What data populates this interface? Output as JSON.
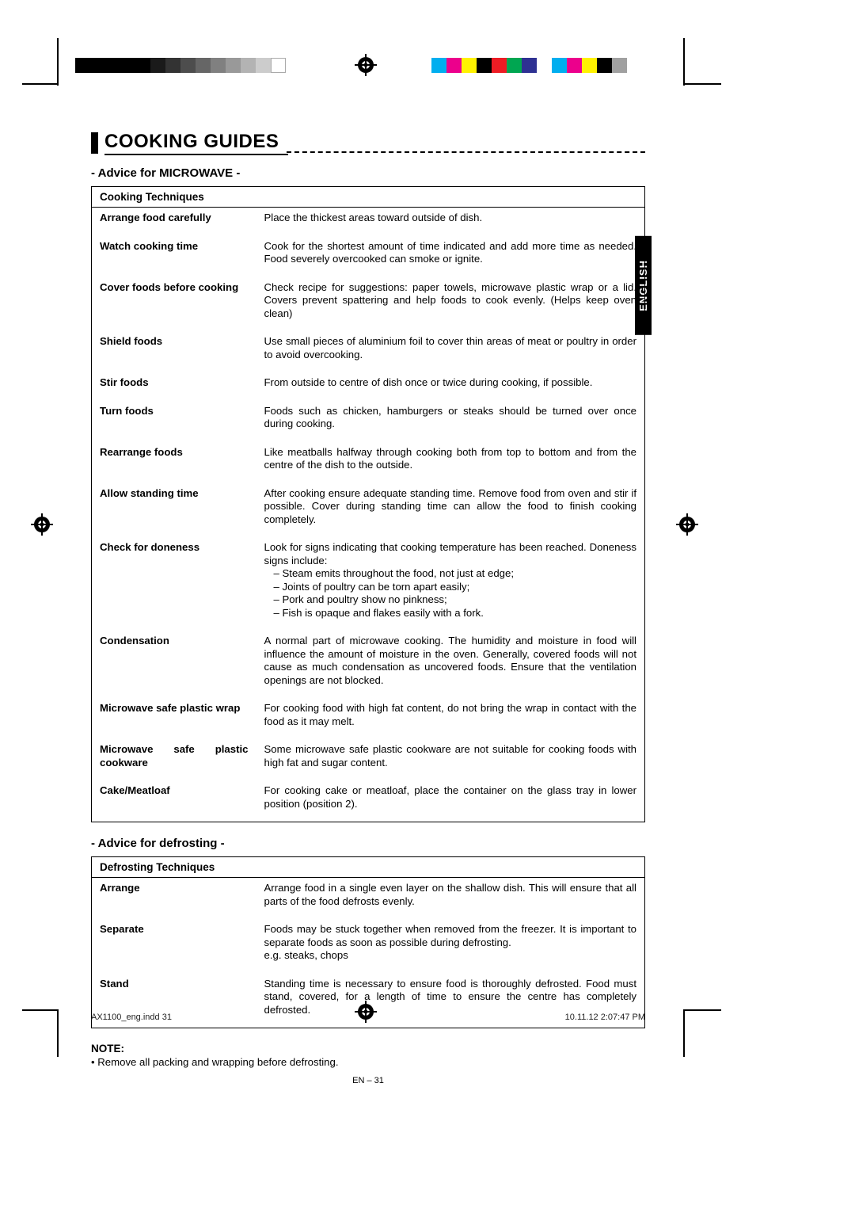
{
  "colorbar_gray": [
    "#000000",
    "#000000",
    "#000000",
    "#000000",
    "#000000",
    "#1a1a1a",
    "#333333",
    "#4d4d4d",
    "#666666",
    "#808080",
    "#999999",
    "#b3b3b3",
    "#cccccc",
    "#ffffff"
  ],
  "colorbar_color": [
    "#00aeef",
    "#ec008c",
    "#fff200",
    "#000000",
    "#ed1c24",
    "#00a651",
    "#2e3192",
    "#ffffff",
    "#00aeef",
    "#ec008c",
    "#fff200",
    "#000000",
    "#a0a0a0",
    "#ffffff"
  ],
  "title": "COOKING GUIDES",
  "lang_tab": "ENGLISH",
  "section1": {
    "subtitle": "- Advice for MICROWAVE -",
    "header": "Cooking Techniques",
    "rows": [
      {
        "label": "Arrange food carefully",
        "desc": "Place the thickest areas toward outside of dish."
      },
      {
        "label": "Watch cooking time",
        "desc": "Cook for the shortest amount of time indicated and add more time as needed. Food severely overcooked can smoke or ignite."
      },
      {
        "label": "Cover foods before cooking",
        "desc": "Check recipe for suggestions: paper towels, microwave plastic wrap or a lid. Covers prevent spattering and help foods to cook evenly. (Helps keep oven clean)"
      },
      {
        "label": "Shield foods",
        "desc": "Use small pieces of aluminium foil to cover thin areas of meat or poultry in order to avoid overcooking."
      },
      {
        "label": "Stir foods",
        "desc": "From outside to centre of dish once or twice during cooking, if possible."
      },
      {
        "label": "Turn foods",
        "desc": "Foods such as chicken, hamburgers or steaks should be turned over once during cooking."
      },
      {
        "label": "Rearrange foods",
        "desc": "Like meatballs halfway through cooking both from top to bottom and from the centre of the dish to the outside."
      },
      {
        "label": "Allow standing time",
        "desc": "After cooking ensure adequate standing time. Remove food from oven and stir if possible. Cover during standing time can allow the food to finish cooking completely."
      },
      {
        "label": "Check for doneness",
        "desc": "Look for signs indicating that cooking temperature has been reached. Doneness signs include:",
        "bullets": [
          "– Steam emits throughout the food, not just at edge;",
          "– Joints of poultry can be torn apart easily;",
          "– Pork and poultry show no pinkness;",
          "– Fish is opaque and flakes easily with a fork."
        ]
      },
      {
        "label": "Condensation",
        "desc": "A normal part of microwave cooking. The humidity and moisture in food will influence the amount of moisture in the oven. Generally, covered foods will not cause as much condensation as uncovered foods. Ensure that the ventilation openings are not blocked."
      },
      {
        "label": "Microwave safe plastic wrap",
        "desc": "For cooking food with high fat content, do not bring the wrap in contact with the food as it may melt."
      },
      {
        "label": "Microwave safe plastic cookware",
        "desc": "Some microwave safe plastic cookware are not suitable for cooking foods with high fat and sugar content."
      },
      {
        "label": "Cake/Meatloaf",
        "desc": "For cooking cake or meatloaf, place the container on the glass tray in lower position (position 2)."
      }
    ]
  },
  "section2": {
    "subtitle": "- Advice for defrosting -",
    "header": "Defrosting Techniques",
    "rows": [
      {
        "label": "Arrange",
        "desc": "Arrange food in a single even layer on the shallow dish. This will ensure that all parts of the food defrosts evenly."
      },
      {
        "label": "Separate",
        "desc": "Foods may be stuck together when removed from the freezer. It is important to separate foods as soon as possible during defrosting.\ne.g. steaks, chops"
      },
      {
        "label": "Stand",
        "desc": "Standing time is necessary to ensure food is thoroughly defrosted. Food must stand, covered, for a length of time to ensure the centre has completely defrosted."
      }
    ]
  },
  "note": {
    "label": "NOTE:",
    "text": "• Remove all packing and wrapping before defrosting."
  },
  "page_num": "EN – 31",
  "footer": {
    "left": "AX1100_eng.indd   31",
    "right": "10.11.12   2:07:47 PM"
  }
}
